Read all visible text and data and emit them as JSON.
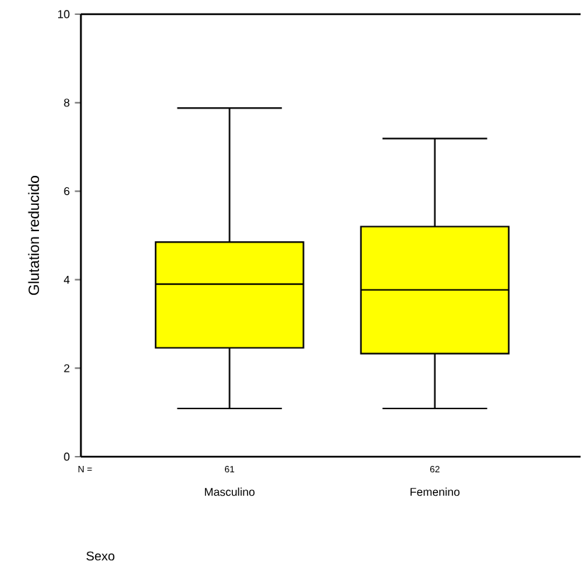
{
  "chart_data": {
    "type": "box",
    "categories": [
      "Masculino",
      "Femenino"
    ],
    "boxes": [
      {
        "low": 1.09,
        "q1": 2.46,
        "median": 3.9,
        "q3": 4.85,
        "high": 7.88
      },
      {
        "low": 1.09,
        "q1": 2.33,
        "median": 3.77,
        "q3": 5.2,
        "high": 7.19
      }
    ],
    "color": "#ffff00",
    "ylim": [
      0,
      10
    ],
    "yticks": [
      0,
      2,
      4,
      6,
      8,
      10
    ],
    "ylabel": "Glutation reducido",
    "annotations": [
      "N =",
      "61",
      "62",
      "Sexo"
    ]
  }
}
